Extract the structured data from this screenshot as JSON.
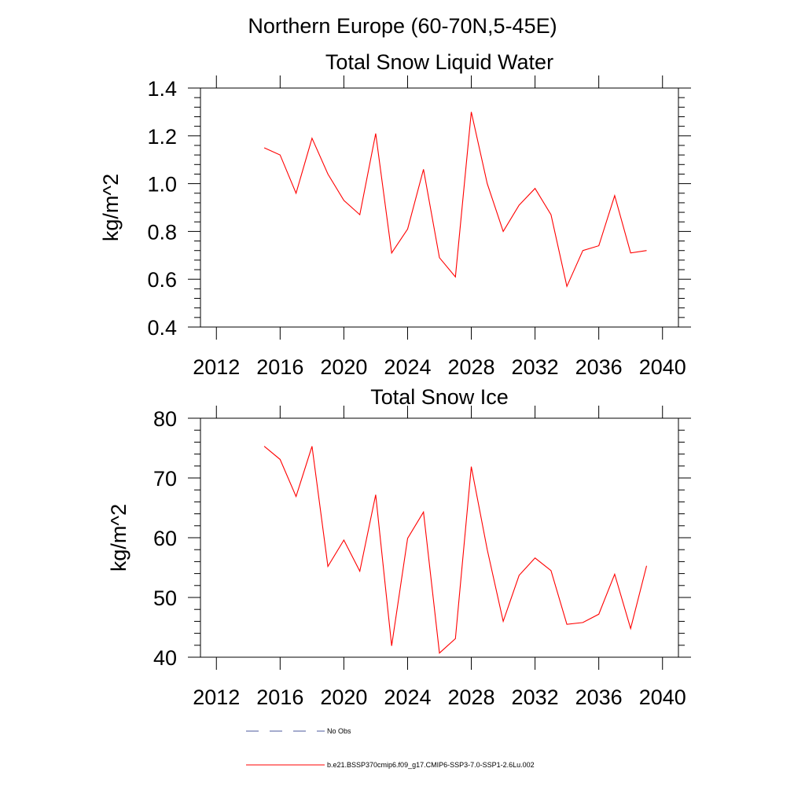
{
  "figure": {
    "title": "Northern Europe (60-70N,5-45E)"
  },
  "chart_data": [
    {
      "type": "line",
      "title": "Total Snow Liquid Water",
      "xlabel": "",
      "ylabel": "kg/m^2",
      "xlim": [
        2011,
        2041
      ],
      "ylim": [
        0.4,
        1.4
      ],
      "xticks": [
        2012,
        2016,
        2020,
        2024,
        2028,
        2032,
        2036,
        2040
      ],
      "xtick_labels": [
        "2012",
        "2016",
        "2020",
        "2024",
        "2028",
        "2032",
        "2036",
        "2040"
      ],
      "yticks": [
        0.4,
        0.6,
        0.8,
        1.0,
        1.2,
        1.4
      ],
      "ytick_labels": [
        "0.4",
        "0.6",
        "0.8",
        "1.0",
        "1.2",
        "1.4"
      ],
      "grid": false,
      "x": [
        2015,
        2016,
        2017,
        2018,
        2019,
        2020,
        2021,
        2022,
        2023,
        2024,
        2025,
        2026,
        2027,
        2028,
        2029,
        2030,
        2031,
        2032,
        2033,
        2034,
        2035,
        2036,
        2037,
        2038,
        2039
      ],
      "series": [
        {
          "name": "b.e21.BSSP370cmip6.f09_g17.CMIP6-SSP3-7.0-SSP1-2.6Lu.002",
          "color": "#ff0000",
          "values": [
            1.15,
            1.12,
            0.96,
            1.19,
            1.04,
            0.93,
            0.87,
            1.21,
            0.71,
            0.81,
            1.06,
            0.69,
            0.61,
            1.3,
            1.0,
            0.8,
            0.91,
            0.98,
            0.87,
            0.57,
            0.72,
            0.74,
            0.95,
            0.71,
            0.72
          ]
        }
      ]
    },
    {
      "type": "line",
      "title": "Total Snow Ice",
      "xlabel": "",
      "ylabel": "kg/m^2",
      "xlim": [
        2011,
        2041
      ],
      "ylim": [
        40,
        80
      ],
      "xticks": [
        2012,
        2016,
        2020,
        2024,
        2028,
        2032,
        2036,
        2040
      ],
      "xtick_labels": [
        "2012",
        "2016",
        "2020",
        "2024",
        "2028",
        "2032",
        "2036",
        "2040"
      ],
      "yticks": [
        40,
        50,
        60,
        70,
        80
      ],
      "ytick_labels": [
        "40",
        "50",
        "60",
        "70",
        "80"
      ],
      "grid": false,
      "x": [
        2015,
        2016,
        2017,
        2018,
        2019,
        2020,
        2021,
        2022,
        2023,
        2024,
        2025,
        2026,
        2027,
        2028,
        2029,
        2030,
        2031,
        2032,
        2033,
        2034,
        2035,
        2036,
        2037,
        2038,
        2039
      ],
      "series": [
        {
          "name": "b.e21.BSSP370cmip6.f09_g17.CMIP6-SSP3-7.0-SSP1-2.6Lu.002",
          "color": "#ff0000",
          "values": [
            75.3,
            73.1,
            66.9,
            75.3,
            55.2,
            59.6,
            54.4,
            67.2,
            41.9,
            59.9,
            64.3,
            40.7,
            43.1,
            71.9,
            58.0,
            46.0,
            53.7,
            56.6,
            54.5,
            45.5,
            45.8,
            47.2,
            53.9,
            44.8,
            55.3
          ]
        }
      ]
    }
  ],
  "legend": {
    "placement": "bottom",
    "items": [
      {
        "label": "No Obs",
        "color": "#4b5a9c",
        "style": "dashed"
      },
      {
        "label": "b.e21.BSSP370cmip6.f09_g17.CMIP6-SSP3-7.0-SSP1-2.6Lu.002",
        "color": "#ff0000",
        "style": "solid"
      }
    ]
  }
}
